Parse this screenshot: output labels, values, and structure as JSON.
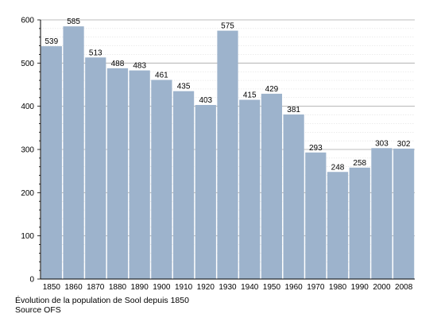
{
  "chart_data": {
    "type": "bar",
    "categories": [
      "1850",
      "1860",
      "1870",
      "1880",
      "1890",
      "1900",
      "1910",
      "1920",
      "1930",
      "1940",
      "1950",
      "1960",
      "1970",
      "1980",
      "1990",
      "2000",
      "2008"
    ],
    "values": [
      539,
      585,
      513,
      488,
      483,
      461,
      435,
      403,
      575,
      415,
      429,
      381,
      293,
      248,
      258,
      303,
      302
    ],
    "ylim": [
      0,
      600
    ],
    "yticks": [
      0,
      100,
      200,
      300,
      400,
      500,
      600
    ],
    "grid": true,
    "bar_color": "#9db3cc",
    "grid_color": "#b4b4b4",
    "title": "Évolution de la population de Sool depuis 1850",
    "source": "Source OFS"
  }
}
